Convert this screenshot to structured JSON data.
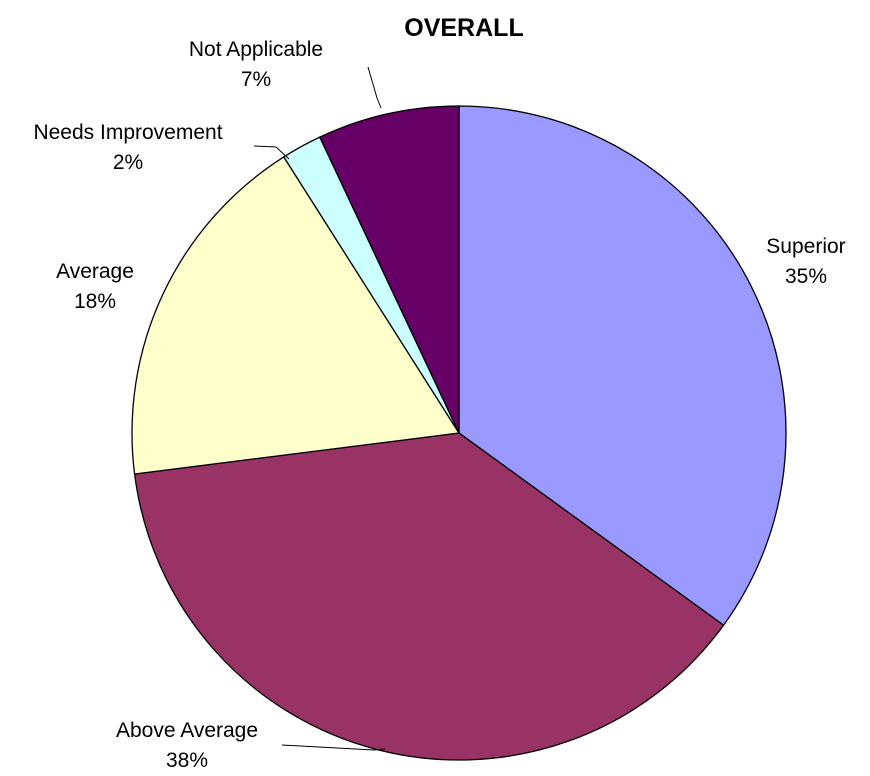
{
  "chart_data": {
    "type": "pie",
    "title": "OVERALL",
    "start": "12 o'clock",
    "direction": "clockwise",
    "slices": [
      {
        "name": "Superior",
        "value": 35,
        "label": "35%",
        "color": "#9999FF"
      },
      {
        "name": "Above Average",
        "value": 38,
        "label": "38%",
        "color": "#993366"
      },
      {
        "name": "Average",
        "value": 18,
        "label": "18%",
        "color": "#FFFFCC"
      },
      {
        "name": "Needs Improvement",
        "value": 2,
        "label": "2%",
        "color": "#CCFFFF"
      },
      {
        "name": "Not Applicable",
        "value": 7,
        "label": "7%",
        "color": "#660066"
      }
    ]
  }
}
